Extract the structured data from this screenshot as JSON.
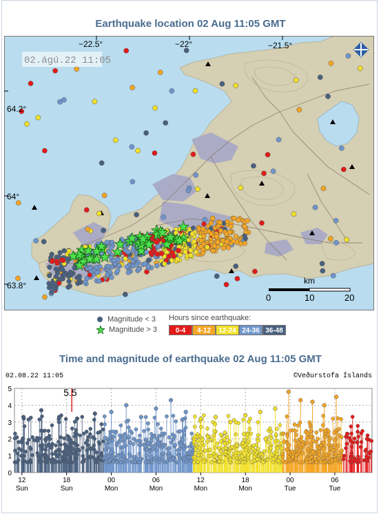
{
  "map": {
    "title": "Earthquake location   02 Aug 11:05 GMT",
    "timestamp": "02.ágú.22 11:05",
    "lon_labels": [
      "−22.5°",
      "−22°",
      "−21.5°"
    ],
    "lat_labels": [
      "64.2°",
      "64°",
      "63.8°"
    ],
    "scale": {
      "unit": "km",
      "ticks": [
        "0",
        "10",
        "20"
      ]
    },
    "logo": "imo-logo-icon",
    "colors": {
      "sea": "#b9dcef",
      "land": "#d5cfb3",
      "lava": "#a9aac6",
      "lake": "#b9dcef"
    }
  },
  "legend": {
    "mag_small": "Magnitude < 3",
    "mag_large": "Magnitude > 3",
    "hours_title": "Hours since earthquake:",
    "bins": [
      {
        "label": "0-4",
        "color": "#e41a1a"
      },
      {
        "label": "4-12",
        "color": "#f5a623"
      },
      {
        "label": "12-24",
        "color": "#f2e12a"
      },
      {
        "label": "24-36",
        "color": "#6f96cc"
      },
      {
        "label": "36-48",
        "color": "#49607f"
      }
    ]
  },
  "timeseries": {
    "title": "Time and magnitude of earthquake   02 Aug 11:05 GMT",
    "stamp": "02.08.22 11:05",
    "credit": "©Veðurstofa Íslands",
    "annotation": "5.5",
    "chart_data": {
      "type": "scatter",
      "title": "Time and magnitude of earthquake   02 Aug 11:05 GMT",
      "xlabel": "",
      "ylabel": "",
      "ylim": [
        0,
        5
      ],
      "yticks": [
        "0",
        "1",
        "2",
        "3",
        "4",
        "5"
      ],
      "xlim_hours": [
        0,
        48
      ],
      "xtick_hours": [
        1,
        7,
        13,
        19,
        25,
        31,
        37,
        43
      ],
      "xtick_labels": [
        [
          "12",
          "Sun"
        ],
        [
          "18",
          "Sun"
        ],
        [
          "00",
          "Mon"
        ],
        [
          "06",
          "Mon"
        ],
        [
          "12",
          "Mon"
        ],
        [
          "18",
          "Mon"
        ],
        [
          "00",
          "Tue"
        ],
        [
          "06",
          "Tue"
        ]
      ],
      "annotation": {
        "label": "5.5",
        "hour": 7.7
      },
      "series": [
        {
          "hours": [
            0,
            12
          ],
          "color": "#49607f",
          "count": 210,
          "max": [
            3.3,
            3.7,
            3.3,
            3.2,
            3.5
          ]
        },
        {
          "hours": [
            12,
            24
          ],
          "color": "#6f96cc",
          "count": 260,
          "max": [
            3.6,
            4.0,
            3.3,
            3.8,
            4.3,
            3.6
          ]
        },
        {
          "hours": [
            24,
            36
          ],
          "color": "#f2e12a",
          "count": 260,
          "max": [
            3.2,
            3.3,
            3.0,
            3.4,
            3.6,
            3.8
          ]
        },
        {
          "hours": [
            36,
            44
          ],
          "color": "#f5a623",
          "count": 200,
          "max": [
            4.8,
            4.3,
            4.2,
            4.0,
            4.5
          ]
        },
        {
          "hours": [
            44,
            48
          ],
          "color": "#e41a1a",
          "count": 50,
          "max": [
            2.3,
            1.8,
            2.0
          ]
        }
      ]
    }
  }
}
